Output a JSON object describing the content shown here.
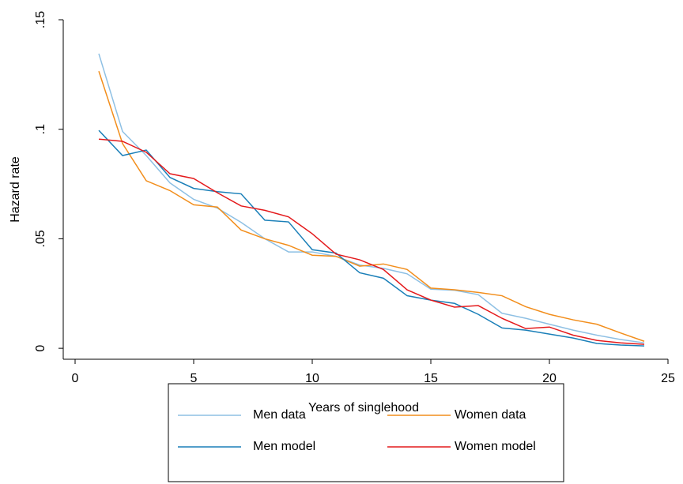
{
  "chart_data": {
    "type": "line",
    "x_label": "Years of singlehood",
    "y_label": "Hazard rate",
    "x": [
      1,
      2,
      3,
      4,
      5,
      6,
      7,
      8,
      9,
      10,
      11,
      12,
      13,
      14,
      15,
      16,
      17,
      18,
      19,
      20,
      21,
      22,
      23,
      24
    ],
    "series": [
      {
        "name": "Men data",
        "color": "#8ec0e4",
        "values": [
          0.1345,
          0.099,
          0.088,
          0.0755,
          0.068,
          0.064,
          0.0575,
          0.05,
          0.044,
          0.044,
          0.042,
          0.038,
          0.0365,
          0.034,
          0.027,
          0.0265,
          0.0245,
          0.016,
          0.0137,
          0.011,
          0.0083,
          0.006,
          0.004,
          0.0025
        ]
      },
      {
        "name": "Women data",
        "color": "#f28e1c",
        "values": [
          0.1265,
          0.0935,
          0.0765,
          0.072,
          0.0655,
          0.0645,
          0.054,
          0.05,
          0.047,
          0.0425,
          0.042,
          0.0375,
          0.0385,
          0.036,
          0.0275,
          0.0267,
          0.0255,
          0.024,
          0.019,
          0.0155,
          0.013,
          0.011,
          0.007,
          0.0032
        ]
      },
      {
        "name": "Men model",
        "color": "#1a7fb8",
        "values": [
          0.0995,
          0.088,
          0.0905,
          0.078,
          0.073,
          0.0715,
          0.0705,
          0.0585,
          0.0577,
          0.045,
          0.0435,
          0.0345,
          0.032,
          0.024,
          0.022,
          0.0205,
          0.0155,
          0.0093,
          0.0083,
          0.0065,
          0.0047,
          0.0022,
          0.0015,
          0.0011
        ]
      },
      {
        "name": "Women model",
        "color": "#e41a1c",
        "values": [
          0.0955,
          0.0945,
          0.0895,
          0.0797,
          0.0775,
          0.071,
          0.065,
          0.063,
          0.06,
          0.0523,
          0.043,
          0.0404,
          0.036,
          0.0267,
          0.022,
          0.0188,
          0.0195,
          0.0137,
          0.009,
          0.0097,
          0.006,
          0.0036,
          0.0025,
          0.0018
        ]
      }
    ],
    "xlim": [
      -0.5,
      25
    ],
    "xticks": [
      0,
      5,
      10,
      15,
      20,
      25
    ],
    "ylim": [
      -0.005,
      0.15
    ],
    "yticks": [
      0,
      {
        "value": 0.05,
        "label": ".05"
      },
      {
        "value": 0.1,
        "label": ".1"
      },
      {
        "value": 0.15,
        "label": ".15"
      }
    ],
    "legend": "bottom"
  }
}
